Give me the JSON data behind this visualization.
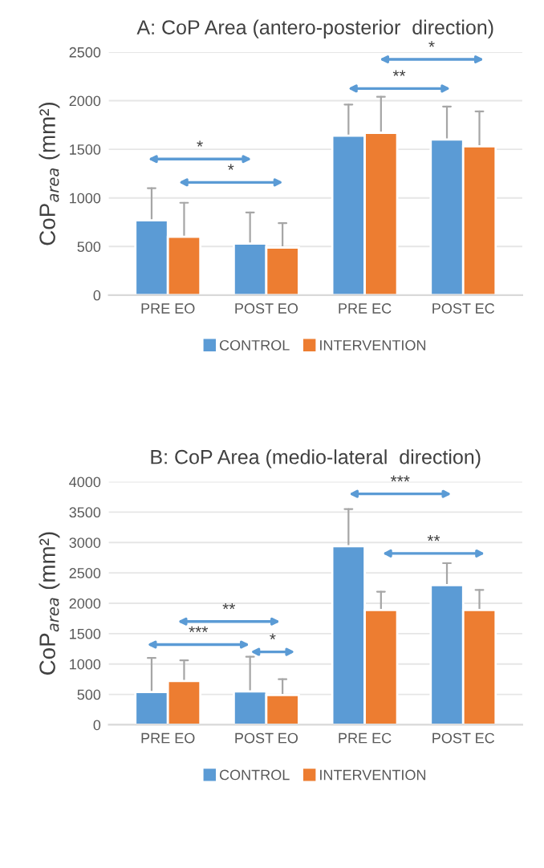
{
  "chart_data": [
    {
      "type": "bar",
      "title": "A: CoP Area (antero-posterior  direction)",
      "ylabel": "CoP$_{area}$ (mm²)",
      "categories": [
        "PRE EO",
        "POST EO",
        "PRE EC",
        "POST EC"
      ],
      "series": [
        {
          "name": "CONTROL",
          "color": "#5b9bd5",
          "values": [
            770,
            530,
            1640,
            1600
          ],
          "errors": [
            [
              770,
              1100
            ],
            [
              530,
              850
            ],
            [
              1640,
              1960
            ],
            [
              1600,
              1940
            ]
          ]
        },
        {
          "name": "INTERVENTION",
          "color": "#ed7d31",
          "values": [
            600,
            490,
            1670,
            1530
          ],
          "errors": [
            [
              600,
              950
            ],
            [
              490,
              740
            ],
            [
              1670,
              2040
            ],
            [
              1530,
              1890
            ]
          ]
        }
      ],
      "ylim": [
        0,
        2500
      ],
      "yticks": [
        0,
        500,
        1000,
        1500,
        2000,
        2500
      ],
      "grid": "y",
      "legend": "bottom",
      "annotations": [
        "*",
        "*",
        "**",
        "*"
      ]
    },
    {
      "type": "bar",
      "title": "B: CoP Area (medio-lateral  direction)",
      "ylabel": "CoP$_{area}$ (mm²)",
      "categories": [
        "PRE EO",
        "POST EO",
        "PRE EC",
        "POST EC"
      ],
      "series": [
        {
          "name": "CONTROL",
          "color": "#5b9bd5",
          "values": [
            540,
            550,
            2940,
            2300
          ],
          "errors": [
            [
              540,
              1100
            ],
            [
              550,
              1120
            ],
            [
              2940,
              3550
            ],
            [
              2300,
              2660
            ]
          ]
        },
        {
          "name": "INTERVENTION",
          "color": "#ed7d31",
          "values": [
            720,
            490,
            1890,
            1890
          ],
          "errors": [
            [
              720,
              1060
            ],
            [
              490,
              750
            ],
            [
              1890,
              2190
            ],
            [
              1890,
              2220
            ]
          ]
        }
      ],
      "ylim": [
        0,
        4000
      ],
      "yticks": [
        0,
        500,
        1000,
        1500,
        2000,
        2500,
        3000,
        3500,
        4000
      ],
      "grid": "y",
      "legend": "bottom",
      "annotations": [
        "**",
        "***",
        "*",
        "***",
        "**"
      ]
    }
  ]
}
